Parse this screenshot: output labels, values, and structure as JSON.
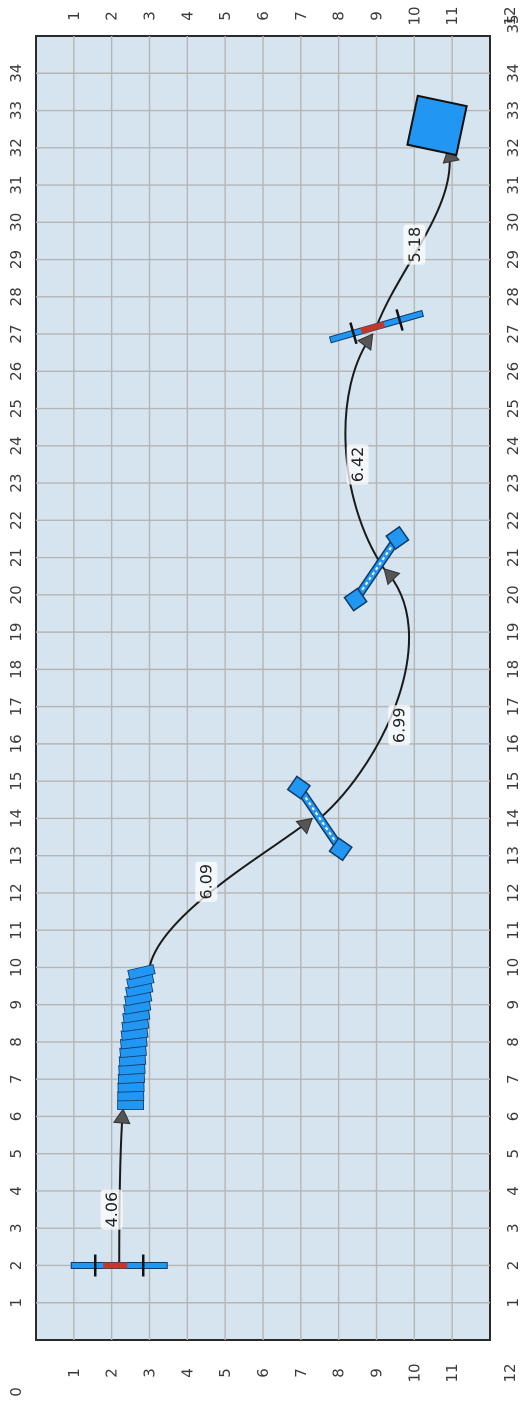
{
  "colors": {
    "background": "#ffffff",
    "plot_fill": "#d6e4ef",
    "grid": "#b5b5b5",
    "border": "#2b2b2b",
    "path": "#1a1a1a",
    "arrow": "#555555",
    "element_fill": "#2196f3",
    "element_edge": "#0d3b66",
    "alert_red": "#c0392b",
    "label_halo": "#ffffff"
  },
  "axes": {
    "long_axis": {
      "min": 0,
      "max": 35,
      "labels": [
        "0",
        "1",
        "2",
        "3",
        "4",
        "5",
        "6",
        "7",
        "8",
        "9",
        "10",
        "11",
        "12",
        "13",
        "14",
        "15",
        "16",
        "17",
        "18",
        "19",
        "20",
        "21",
        "22",
        "23",
        "24",
        "25",
        "26",
        "27",
        "28",
        "29",
        "30",
        "31",
        "32",
        "33",
        "34",
        "35"
      ]
    },
    "short_axis": {
      "min": 0,
      "max": 12,
      "labels": [
        "1",
        "2",
        "3",
        "4",
        "5",
        "6",
        "7",
        "8",
        "9",
        "10",
        "11",
        "12"
      ]
    },
    "grid": true,
    "orientation": "rotated-90"
  },
  "chart_data": {
    "type": "diagram",
    "nodes": [
      {
        "id": "start-marker",
        "shape": "tick-bar",
        "long": 2.0,
        "short": 2.2,
        "accent": "red"
      },
      {
        "id": "curved-block",
        "shape": "curved-segments",
        "long_from": 6.2,
        "long_to": 10.0,
        "short": 2.5,
        "segments": 16
      },
      {
        "id": "dumbbell-1",
        "shape": "dumbbell",
        "long": 14.0,
        "short": 7.5
      },
      {
        "id": "dumbbell-2",
        "shape": "dumbbell",
        "long": 20.7,
        "short": 9.0
      },
      {
        "id": "cross-marker",
        "shape": "tick-bar",
        "long": 27.2,
        "short": 9.0,
        "accent": "red"
      },
      {
        "id": "end-square",
        "shape": "square",
        "long": 32.6,
        "short": 10.6
      }
    ],
    "edges": [
      {
        "from": "start-marker",
        "to": "curved-block",
        "label": "4.06",
        "label_at": {
          "long": 3.5,
          "short": 2.0
        }
      },
      {
        "from": "curved-block",
        "to": "dumbbell-1",
        "label": "6.09",
        "label_at": {
          "long": 12.3,
          "short": 4.5
        }
      },
      {
        "from": "dumbbell-1",
        "to": "dumbbell-2",
        "label": "6.99",
        "label_at": {
          "long": 16.5,
          "short": 9.6
        }
      },
      {
        "from": "dumbbell-2",
        "to": "cross-marker",
        "label": "6.42",
        "label_at": {
          "long": 23.5,
          "short": 8.5
        }
      },
      {
        "from": "cross-marker",
        "to": "end-square",
        "label": "5.18",
        "label_at": {
          "long": 29.4,
          "short": 10.0
        }
      }
    ]
  }
}
